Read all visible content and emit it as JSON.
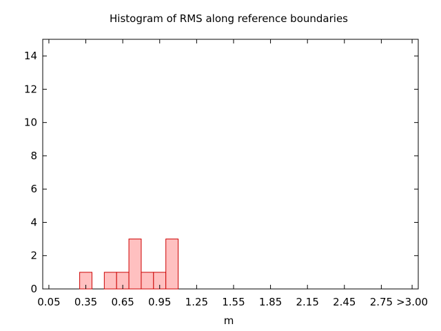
{
  "chart_data": {
    "type": "bar",
    "title": "Histogram of RMS along reference boundaries",
    "xlabel": "m",
    "ylabel": "",
    "x_range": [
      0.0,
      3.05
    ],
    "ylim": [
      0,
      15
    ],
    "x_ticks": [
      {
        "value": 0.05,
        "label": "0.05"
      },
      {
        "value": 0.35,
        "label": "0.35"
      },
      {
        "value": 0.65,
        "label": "0.65"
      },
      {
        "value": 0.95,
        "label": "0.95"
      },
      {
        "value": 1.25,
        "label": "1.25"
      },
      {
        "value": 1.55,
        "label": "1.55"
      },
      {
        "value": 1.85,
        "label": "1.85"
      },
      {
        "value": 2.15,
        "label": "2.15"
      },
      {
        "value": 2.45,
        "label": "2.45"
      },
      {
        "value": 2.75,
        "label": "2.75"
      },
      {
        "value": 3.0,
        "label": ">3.00"
      }
    ],
    "y_ticks": [
      0,
      2,
      4,
      6,
      8,
      10,
      12,
      14
    ],
    "bin_width": 0.1,
    "bins": [
      {
        "x": 0.35,
        "count": 1
      },
      {
        "x": 0.55,
        "count": 1
      },
      {
        "x": 0.65,
        "count": 1
      },
      {
        "x": 0.75,
        "count": 3
      },
      {
        "x": 0.85,
        "count": 1
      },
      {
        "x": 0.95,
        "count": 1
      },
      {
        "x": 1.05,
        "count": 3
      }
    ],
    "bar_fill": "#ffc0c0",
    "bar_stroke": "#cc0000",
    "grid": false,
    "legend": "none"
  }
}
